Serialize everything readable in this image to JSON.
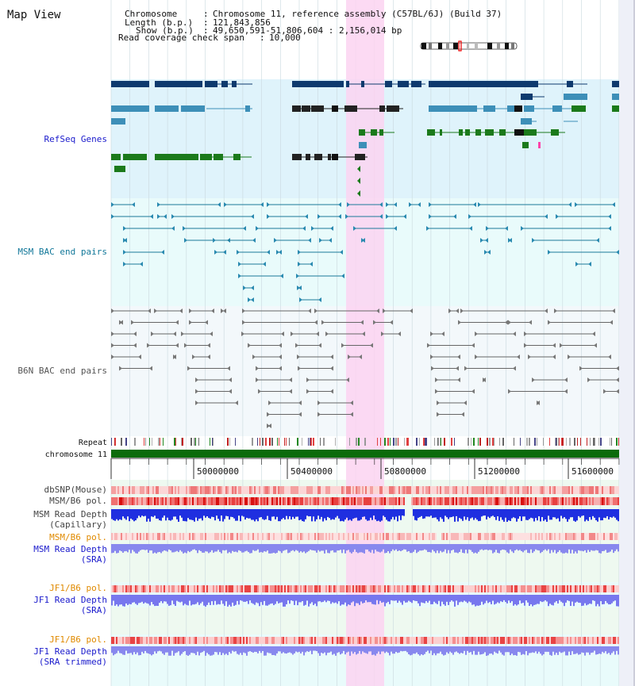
{
  "title": "Map View",
  "header": {
    "lines": [
      {
        "key": "Chromosome",
        "value": "Chromosome 11, reference assembly (C57BL/6J) (Build 37)"
      },
      {
        "key": "Length (b.p.)",
        "value": "121,843,856"
      },
      {
        "key": "Show (b.p.)",
        "value": "49,650,591-51,806,604 : 2,156,014 bp"
      },
      {
        "key": "Read coverage check span",
        "value": "10,000"
      }
    ]
  },
  "tracks": {
    "refseq": "RefSeq Genes",
    "msm_bac": "MSM BAC end pairs",
    "b6n_bac": "B6N BAC end pairs",
    "repeat": "Repeat",
    "chromosome": "chromosome 11"
  },
  "axis": {
    "ticks": [
      "50000000",
      "50400000",
      "50800000",
      "51200000",
      "51600000"
    ]
  },
  "bottom_tracks": [
    {
      "lines": [
        "dbSNP(Mouse)"
      ],
      "color": "#444444"
    },
    {
      "lines": [
        "MSM/B6 pol."
      ],
      "color": "#444444"
    },
    {
      "lines": [
        "MSM Read Depth",
        "(Capillary)"
      ],
      "color": "#444444"
    },
    {
      "lines": [
        "MSM/B6 pol."
      ],
      "color": "#e08a00"
    },
    {
      "lines": [
        "MSM Read Depth",
        "(SRA)"
      ],
      "color": "#1a1acc"
    },
    {
      "lines": [
        "JF1/B6 pol."
      ],
      "color": "#e08a00"
    },
    {
      "lines": [
        "JF1 Read Depth",
        "(SRA)"
      ],
      "color": "#1a1acc"
    },
    {
      "lines": [
        "JF1/B6 pol."
      ],
      "color": "#e08a00"
    },
    {
      "lines": [
        "JF1 Read Depth",
        "(SRA trimmed)"
      ],
      "color": "#1a1acc"
    }
  ],
  "colors": {
    "refseq_label": "#1a1acc",
    "msm_bac_label": "#117799",
    "b6n_bac_label": "#555555",
    "refseq_bg": "#dff3fb",
    "bac_bg": "#e9fbfb",
    "b6n_bg": "#f3f8fb",
    "highlight": "#fbd3f1",
    "chromosome_bar": "#0b6b0b",
    "gene_dark": "#0e3a6e",
    "gene_mid": "#3d8fb8",
    "gene_green": "#1b7a1b"
  }
}
